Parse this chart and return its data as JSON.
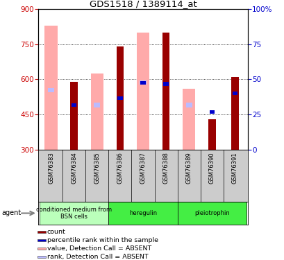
{
  "title": "GDS1518 / 1389114_at",
  "samples": [
    "GSM76383",
    "GSM76384",
    "GSM76385",
    "GSM76386",
    "GSM76387",
    "GSM76388",
    "GSM76389",
    "GSM76390",
    "GSM76391"
  ],
  "count_values": [
    null,
    590,
    null,
    740,
    null,
    800,
    null,
    430,
    610
  ],
  "absent_value_values": [
    830,
    null,
    625,
    null,
    800,
    null,
    560,
    null,
    null
  ],
  "absent_rank_values": [
    555,
    490,
    490,
    520,
    585,
    585,
    490,
    null,
    535
  ],
  "percentile_rank_values": [
    null,
    490,
    null,
    520,
    585,
    580,
    null,
    460,
    540
  ],
  "ylim_left": [
    300,
    900
  ],
  "ylim_right": [
    0,
    100
  ],
  "yticks_left": [
    300,
    450,
    600,
    750,
    900
  ],
  "yticks_right": [
    0,
    25,
    50,
    75,
    100
  ],
  "agents": [
    {
      "label": "conditioned medium from\nBSN cells",
      "start": 0,
      "end": 3,
      "color": "#bbffbb"
    },
    {
      "label": "heregulin",
      "start": 3,
      "end": 6,
      "color": "#44ee44"
    },
    {
      "label": "pleiotrophin",
      "start": 6,
      "end": 9,
      "color": "#44ee44"
    }
  ],
  "count_color": "#990000",
  "absent_value_color": "#ffaaaa",
  "absent_rank_color": "#bbbbff",
  "percentile_color": "#0000cc",
  "left_label_color": "#cc0000",
  "right_label_color": "#0000cc",
  "legend_labels": [
    "count",
    "percentile rank within the sample",
    "value, Detection Call = ABSENT",
    "rank, Detection Call = ABSENT"
  ],
  "legend_colors": [
    "#990000",
    "#0000cc",
    "#ffaaaa",
    "#bbbbff"
  ]
}
